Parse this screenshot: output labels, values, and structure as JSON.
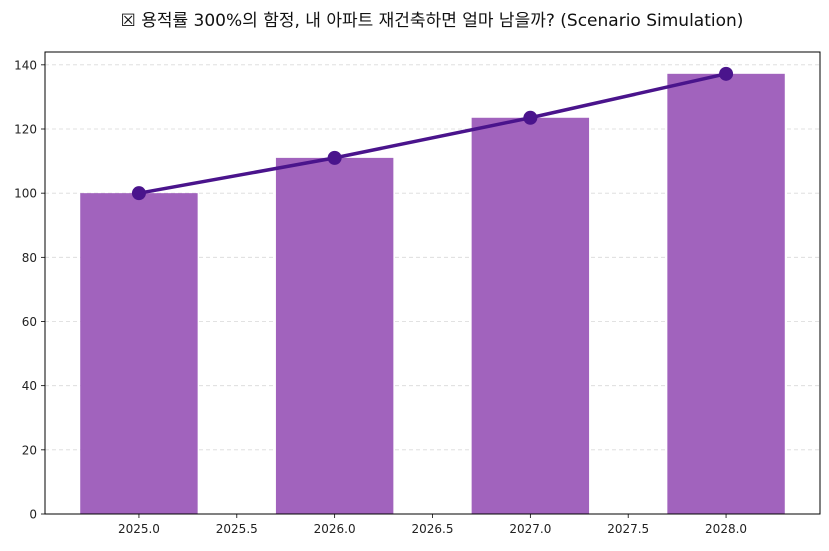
{
  "chart_data": {
    "type": "bar",
    "title": "☒ 용적률 300%의 함정, 내 아파트 재건축하면 얼마 남을까? (Scenario Simulation)",
    "xlabel": "",
    "ylabel": "",
    "x": [
      2025,
      2026,
      2027,
      2028
    ],
    "values": [
      100,
      111,
      123.5,
      137.2
    ],
    "line_values": [
      100,
      111,
      123.5,
      137.2
    ],
    "bar_width": 0.6,
    "xlim": [
      2024.52,
      2028.48
    ],
    "ylim": [
      0,
      144
    ],
    "xticks": [
      "2025.0",
      "2025.5",
      "2026.0",
      "2026.5",
      "2027.0",
      "2027.5",
      "2028.0"
    ],
    "xtick_values": [
      2025,
      2025.5,
      2026,
      2026.5,
      2027,
      2027.5,
      2028
    ],
    "yticks": [
      0,
      20,
      40,
      60,
      80,
      100,
      120,
      140
    ],
    "grid": "y-dashed",
    "colors": {
      "bar": "#a163bd",
      "line": "#4a148c",
      "grid": "#d9d9d9"
    }
  }
}
